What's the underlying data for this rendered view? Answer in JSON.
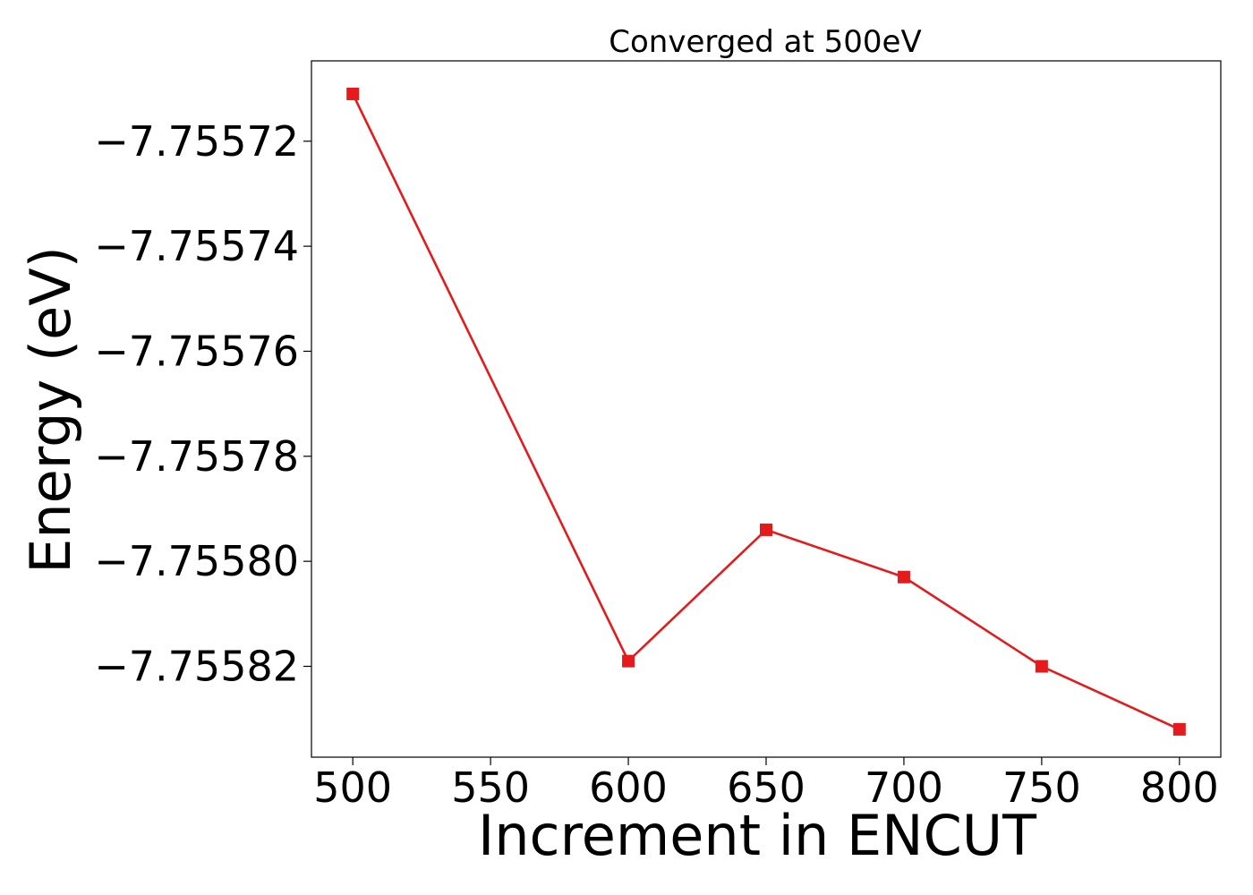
{
  "chart_data": {
    "type": "line",
    "title": "Converged at 500eV",
    "xlabel": "Increment in ENCUT",
    "ylabel": "Energy (eV)",
    "x": [
      500,
      600,
      650,
      700,
      750,
      800
    ],
    "series": [
      {
        "values": [
          -7.755711,
          -7.755819,
          -7.755794,
          -7.755803,
          -7.75582,
          -7.755832
        ],
        "color": "#e41a1c",
        "marker": "square"
      }
    ],
    "x_ticks": [
      500,
      550,
      600,
      650,
      700,
      750,
      800
    ],
    "x_tick_labels": [
      "500",
      "550",
      "600",
      "650",
      "700",
      "750",
      "800"
    ],
    "y_ticks": [
      -7.75572,
      -7.75574,
      -7.75576,
      -7.75578,
      -7.7558,
      -7.75582
    ],
    "y_tick_labels": [
      "−7.75572",
      "−7.75574",
      "−7.75576",
      "−7.75578",
      "−7.75580",
      "−7.75582"
    ],
    "xlim": [
      485,
      815
    ],
    "ylim": [
      -7.7558373,
      -7.7557047
    ],
    "grid": false,
    "legend": "none"
  }
}
